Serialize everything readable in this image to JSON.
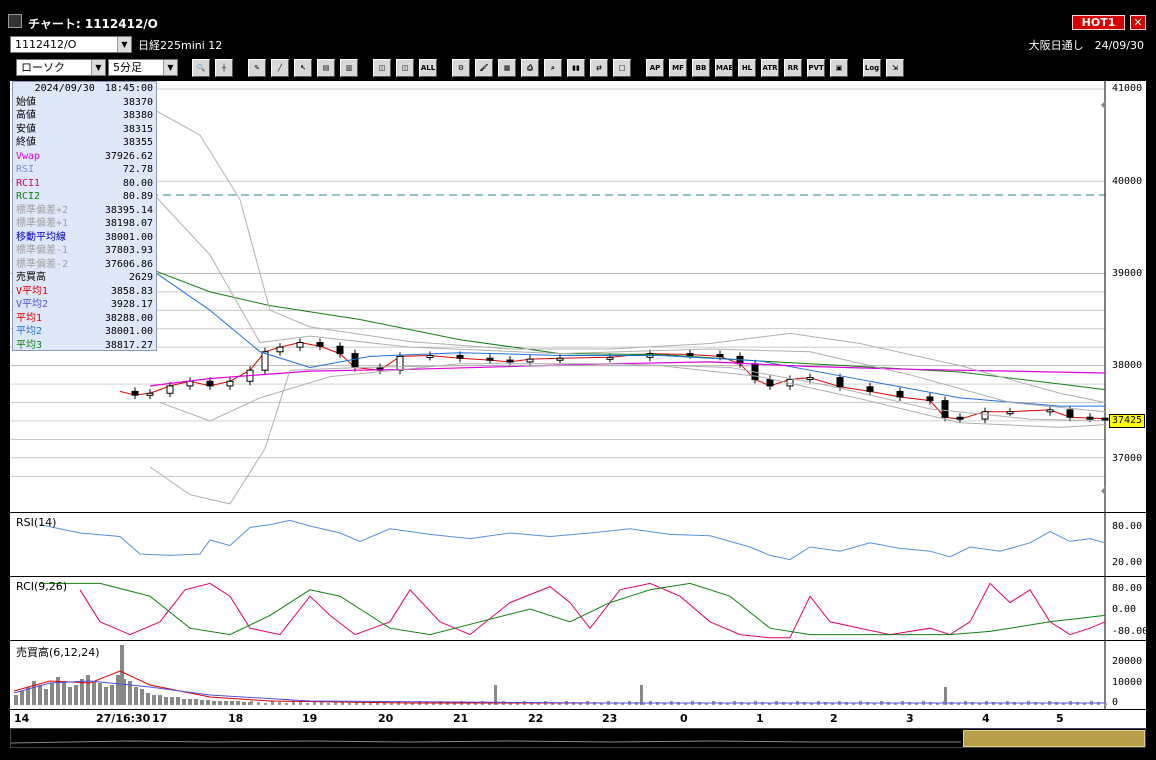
{
  "window": {
    "title": "チャート: 1112412/O",
    "hot_label": "HOT1",
    "close_label": "✕"
  },
  "toolbar1": {
    "symbol_value": "1112412/O",
    "symbol_name": "日経225mini 12",
    "market_date": "大阪日通し　24/09/30"
  },
  "toolbar2": {
    "chart_type": "ローソク",
    "interval": "5分足",
    "buttons": [
      "zoom",
      "crosshair",
      "pen",
      "line",
      "arrow",
      "note",
      "trash",
      "candle",
      "candle2",
      "ALL",
      "settings",
      "brush",
      "palette",
      "print",
      "search",
      "bars",
      "swap",
      "disabled",
      "AP",
      "MF",
      "BB",
      "MAE",
      "HL",
      "ATR",
      "RR",
      "PVT",
      "box",
      "Log",
      "export"
    ]
  },
  "info": {
    "datetime": "2024/09/30　18:45:00",
    "rows": [
      {
        "label": "始値",
        "value": "38370",
        "color": "#000000"
      },
      {
        "label": "高値",
        "value": "38380",
        "color": "#000000"
      },
      {
        "label": "安値",
        "value": "38315",
        "color": "#000000"
      },
      {
        "label": "終値",
        "value": "38355",
        "color": "#000000"
      },
      {
        "label": "Vwap",
        "value": "37926.62",
        "color": "#e000e0"
      },
      {
        "label": "RSI",
        "value": "72.78",
        "color": "#7090e0"
      },
      {
        "label": "RCI1",
        "value": "80.00",
        "color": "#e00060"
      },
      {
        "label": "RCI2",
        "value": "80.89",
        "color": "#108010"
      },
      {
        "label": "標準偏差+2",
        "value": "38395.14",
        "color": "#a0a0a0"
      },
      {
        "label": "標準偏差+1",
        "value": "38198.07",
        "color": "#a0a0a0"
      },
      {
        "label": "移動平均線",
        "value": "38001.00",
        "color": "#0000c0"
      },
      {
        "label": "標準偏差-1",
        "value": "37803.93",
        "color": "#a0a0a0"
      },
      {
        "label": "標準偏差-2",
        "value": "37606.86",
        "color": "#a0a0a0"
      },
      {
        "label": "売買高",
        "value": "2629",
        "color": "#000000"
      },
      {
        "label": "V平均1",
        "value": "3858.83",
        "color": "#e00000"
      },
      {
        "label": "V平均2",
        "value": "3928.17",
        "color": "#5050e0"
      },
      {
        "label": "平均1",
        "value": "38288.00",
        "color": "#e00000"
      },
      {
        "label": "平均2",
        "value": "38001.00",
        "color": "#2070e0"
      },
      {
        "label": "平均3",
        "value": "38817.27",
        "color": "#108010"
      }
    ]
  },
  "panes": {
    "price_axis": [
      "41000",
      "40000",
      "39000",
      "38000",
      "37000"
    ],
    "last_price": "37425",
    "rsi_label": "RSI(14)",
    "rsi_axis": [
      "80.00",
      "20.00"
    ],
    "rci_label": "RCI(9,26)",
    "rci_axis": [
      "80.00",
      "0.00",
      "-80.00"
    ],
    "vol_label": "売買高(6,12,24)",
    "vol_axis": [
      "20000",
      "10000",
      "0"
    ]
  },
  "xaxis": [
    "14",
    "27/16:30",
    "17",
    "18",
    "19",
    "20",
    "21",
    "22",
    "23",
    "0",
    "1",
    "2",
    "3",
    "4",
    "5"
  ],
  "colors": {
    "ma_short": "#e00000",
    "ma_mid": "#2070e0",
    "ma_long": "#108010",
    "vwap": "#e000e0",
    "band": "#b0b0b0",
    "dashed_level": "#208090"
  }
}
